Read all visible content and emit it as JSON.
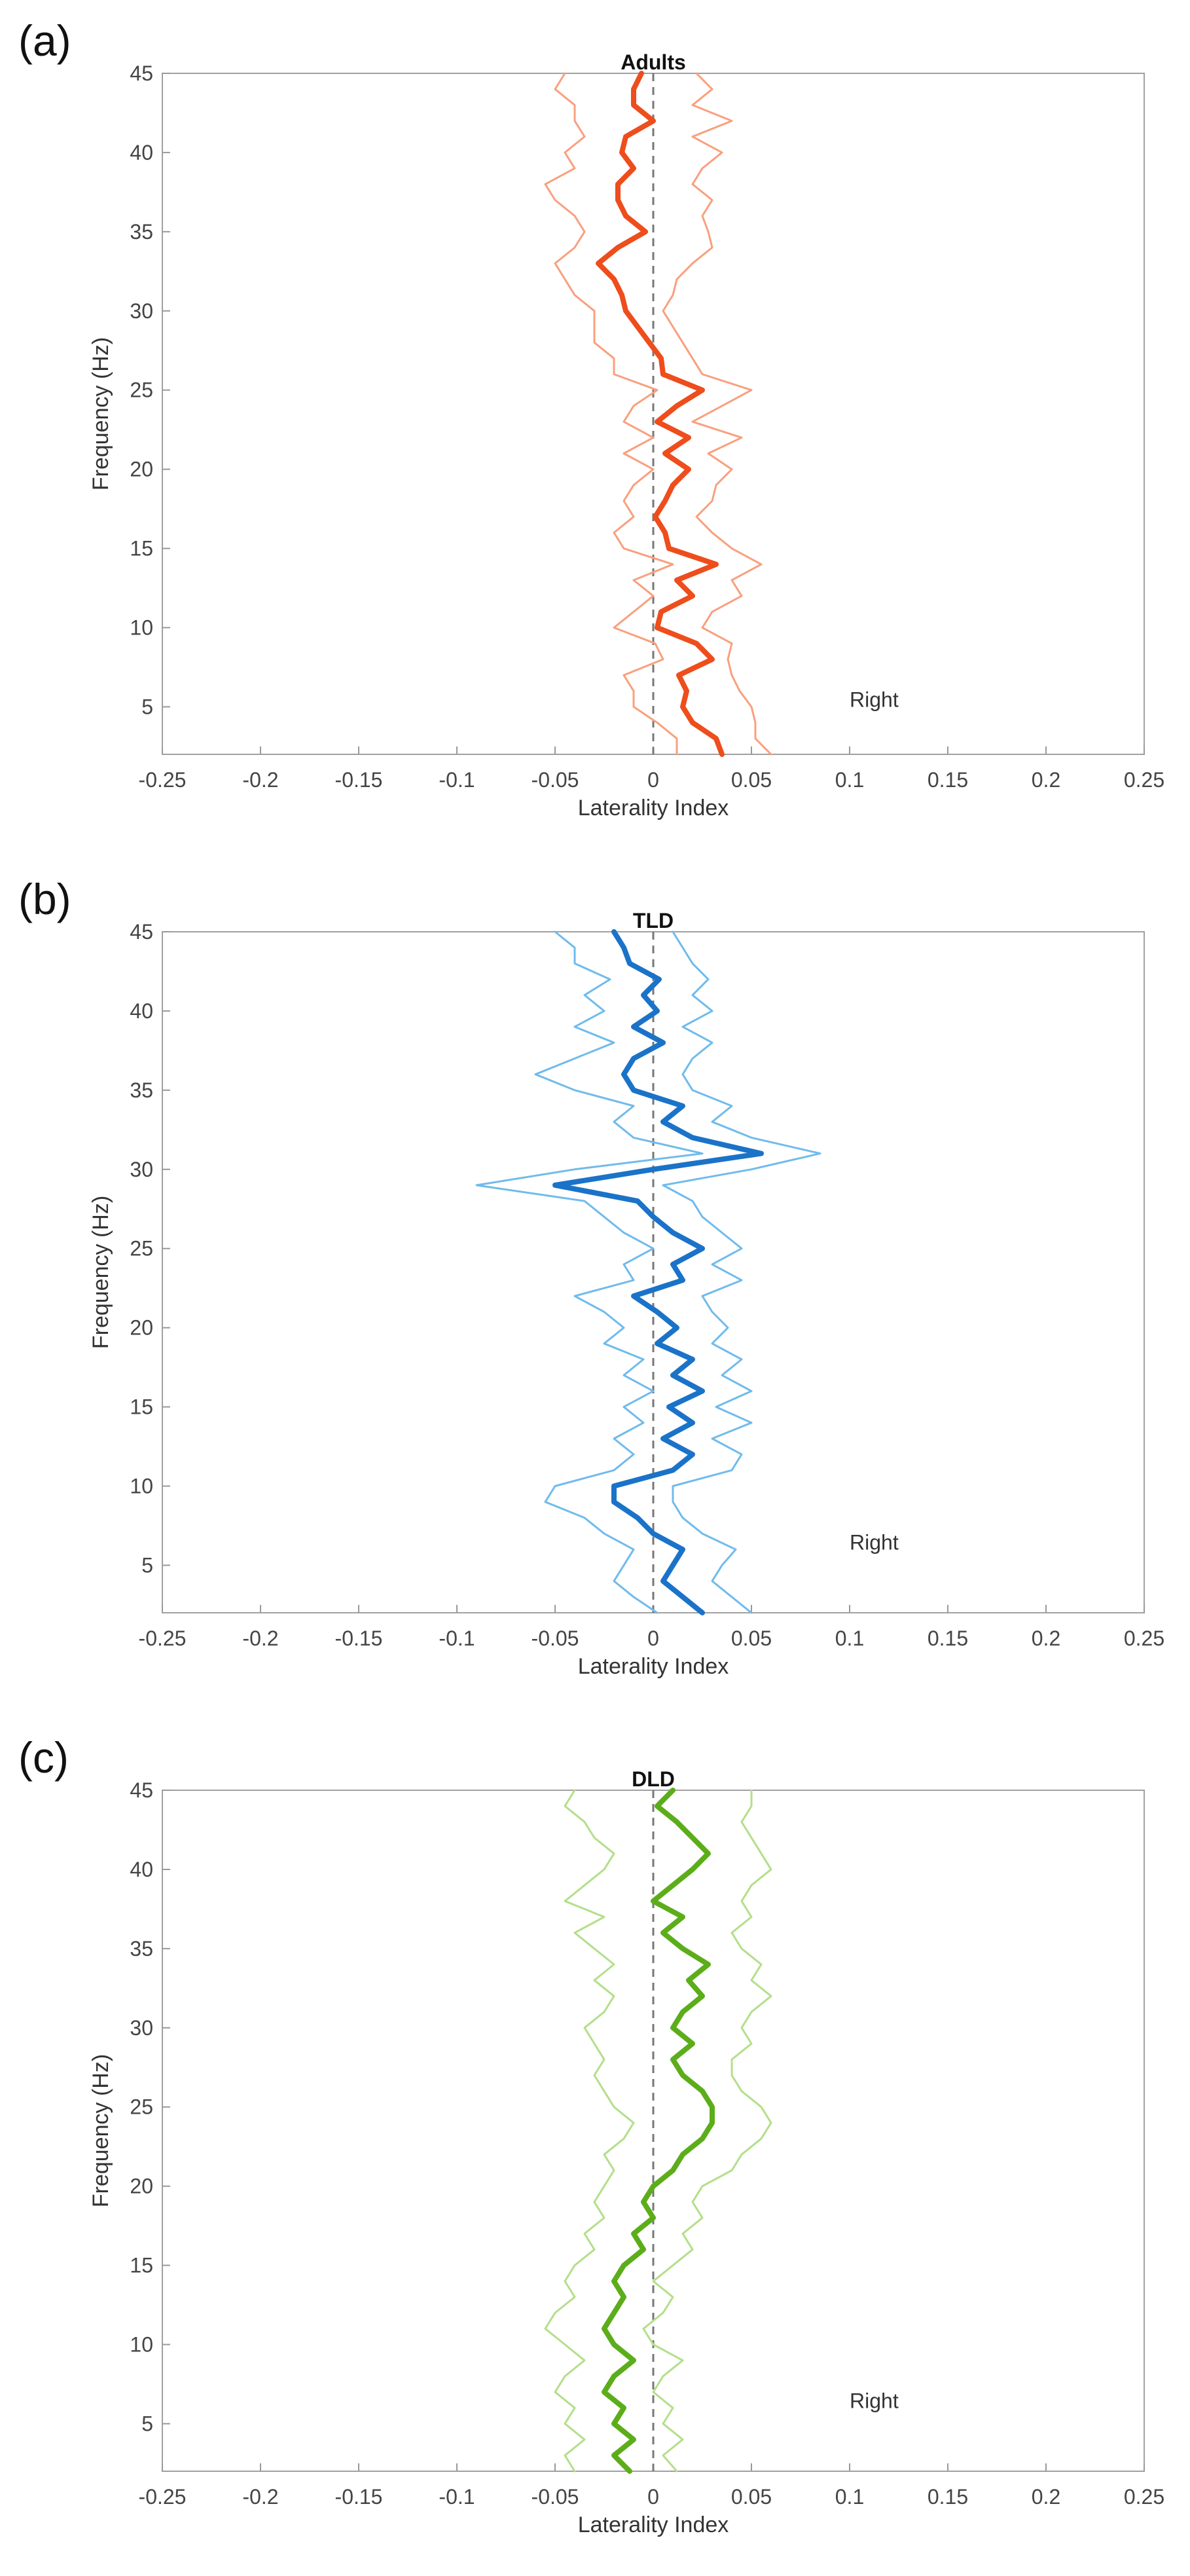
{
  "figure": {
    "panels": [
      {
        "letter": "(a)"
      },
      {
        "letter": "(b)"
      },
      {
        "letter": "(c)"
      }
    ]
  },
  "chart_data": [
    {
      "type": "line",
      "title": "Adults",
      "xlabel": "Laterality Index",
      "ylabel": "Frequency (Hz)",
      "xlim": [
        -0.25,
        0.25
      ],
      "ylim": [
        2,
        45
      ],
      "x_ticks": [
        "-0.25",
        "-0.2",
        "-0.15",
        "-0.1",
        "-0.05",
        "0",
        "0.05",
        "0.1",
        "0.15",
        "0.2",
        "0.25"
      ],
      "y_ticks": [
        "5",
        "10",
        "15",
        "20",
        "25",
        "30",
        "35",
        "40",
        "45"
      ],
      "annotation": "Right",
      "annotation_pos": {
        "x": 0.1,
        "y": 5
      },
      "colors": {
        "mean": "#ee4d1c",
        "bounds": "#f9a07e"
      },
      "frequency": [
        2,
        3,
        4,
        5,
        6,
        7,
        8,
        9,
        10,
        11,
        12,
        13,
        14,
        15,
        16,
        17,
        18,
        19,
        20,
        21,
        22,
        23,
        24,
        25,
        26,
        27,
        28,
        29,
        30,
        31,
        32,
        33,
        34,
        35,
        36,
        37,
        38,
        39,
        40,
        41,
        42,
        43,
        44,
        45
      ],
      "series": [
        {
          "name": "mean",
          "values": [
            0.035,
            0.032,
            0.02,
            0.015,
            0.017,
            0.013,
            0.03,
            0.022,
            0.002,
            0.004,
            0.02,
            0.012,
            0.032,
            0.008,
            0.006,
            0.001,
            0.006,
            0.01,
            0.018,
            0.006,
            0.018,
            0.002,
            0.012,
            0.025,
            0.005,
            0.004,
            -0.002,
            -0.008,
            -0.014,
            -0.016,
            -0.02,
            -0.028,
            -0.018,
            -0.004,
            -0.014,
            -0.018,
            -0.018,
            -0.01,
            -0.016,
            -0.014,
            0.0,
            -0.01,
            -0.01,
            -0.006
          ]
        },
        {
          "name": "upper",
          "values": [
            0.06,
            0.052,
            0.052,
            0.05,
            0.044,
            0.04,
            0.038,
            0.04,
            0.025,
            0.03,
            0.045,
            0.04,
            0.055,
            0.04,
            0.03,
            0.022,
            0.03,
            0.032,
            0.04,
            0.028,
            0.045,
            0.02,
            0.035,
            0.05,
            0.025,
            0.02,
            0.015,
            0.01,
            0.005,
            0.01,
            0.012,
            0.02,
            0.03,
            0.028,
            0.025,
            0.03,
            0.02,
            0.025,
            0.035,
            0.02,
            0.04,
            0.02,
            0.03,
            0.022
          ]
        },
        {
          "name": "lower",
          "values": [
            0.012,
            0.012,
            0.002,
            -0.01,
            -0.01,
            -0.015,
            0.005,
            0.001,
            -0.02,
            -0.01,
            0.0,
            -0.01,
            0.01,
            -0.015,
            -0.02,
            -0.01,
            -0.015,
            -0.01,
            0.0,
            -0.015,
            0.0,
            -0.015,
            -0.01,
            0.002,
            -0.02,
            -0.02,
            -0.03,
            -0.03,
            -0.03,
            -0.04,
            -0.045,
            -0.05,
            -0.04,
            -0.035,
            -0.04,
            -0.05,
            -0.055,
            -0.04,
            -0.045,
            -0.035,
            -0.04,
            -0.04,
            -0.05,
            -0.045
          ]
        }
      ]
    },
    {
      "type": "line",
      "title": "TLD",
      "xlabel": "Laterality Index",
      "ylabel": "Frequency (Hz)",
      "xlim": [
        -0.25,
        0.25
      ],
      "ylim": [
        2,
        45
      ],
      "x_ticks": [
        "-0.25",
        "-0.2",
        "-0.15",
        "-0.1",
        "-0.05",
        "0",
        "0.05",
        "0.1",
        "0.15",
        "0.2",
        "0.25"
      ],
      "y_ticks": [
        "5",
        "10",
        "15",
        "20",
        "25",
        "30",
        "35",
        "40",
        "45"
      ],
      "annotation": "Right",
      "annotation_pos": {
        "x": 0.1,
        "y": 6
      },
      "colors": {
        "mean": "#1a73c8",
        "bounds": "#70bbec"
      },
      "frequency": [
        2,
        3,
        4,
        5,
        6,
        7,
        8,
        9,
        10,
        11,
        12,
        13,
        14,
        15,
        16,
        17,
        18,
        19,
        20,
        21,
        22,
        23,
        24,
        25,
        26,
        27,
        28,
        29,
        30,
        31,
        32,
        33,
        34,
        35,
        36,
        37,
        38,
        39,
        40,
        41,
        42,
        43,
        44,
        45
      ],
      "series": [
        {
          "name": "mean",
          "values": [
            0.025,
            0.015,
            0.005,
            0.01,
            0.015,
            0.0,
            -0.008,
            -0.02,
            -0.02,
            0.01,
            0.02,
            0.005,
            0.02,
            0.008,
            0.025,
            0.01,
            0.02,
            0.002,
            0.012,
            0.002,
            -0.01,
            0.015,
            0.01,
            0.025,
            0.01,
            0.0,
            -0.008,
            -0.05,
            0.0,
            0.055,
            0.02,
            0.005,
            0.015,
            -0.01,
            -0.015,
            -0.01,
            0.005,
            -0.01,
            0.002,
            -0.005,
            0.003,
            -0.012,
            -0.015,
            -0.02
          ]
        },
        {
          "name": "upper",
          "values": [
            0.05,
            0.04,
            0.03,
            0.035,
            0.042,
            0.025,
            0.015,
            0.01,
            0.01,
            0.04,
            0.045,
            0.03,
            0.05,
            0.032,
            0.05,
            0.035,
            0.045,
            0.03,
            0.038,
            0.03,
            0.025,
            0.045,
            0.03,
            0.045,
            0.035,
            0.025,
            0.02,
            0.005,
            0.05,
            0.085,
            0.05,
            0.03,
            0.04,
            0.02,
            0.015,
            0.02,
            0.03,
            0.015,
            0.03,
            0.02,
            0.028,
            0.02,
            0.015,
            0.01
          ]
        },
        {
          "name": "lower",
          "values": [
            0.002,
            -0.01,
            -0.02,
            -0.015,
            -0.01,
            -0.025,
            -0.035,
            -0.055,
            -0.05,
            -0.02,
            -0.01,
            -0.02,
            -0.005,
            -0.015,
            0.0,
            -0.015,
            -0.005,
            -0.025,
            -0.015,
            -0.025,
            -0.04,
            -0.01,
            -0.015,
            0.0,
            -0.015,
            -0.025,
            -0.035,
            -0.09,
            -0.04,
            0.025,
            -0.01,
            -0.02,
            -0.01,
            -0.04,
            -0.06,
            -0.04,
            -0.02,
            -0.04,
            -0.025,
            -0.035,
            -0.022,
            -0.04,
            -0.04,
            -0.05
          ]
        }
      ]
    },
    {
      "type": "line",
      "title": "DLD",
      "xlabel": "Laterality Index",
      "ylabel": "Frequency (Hz)",
      "xlim": [
        -0.25,
        0.25
      ],
      "ylim": [
        2,
        45
      ],
      "x_ticks": [
        "-0.25",
        "-0.2",
        "-0.15",
        "-0.1",
        "-0.05",
        "0",
        "0.05",
        "0.1",
        "0.15",
        "0.2",
        "0.25"
      ],
      "y_ticks": [
        "5",
        "10",
        "15",
        "20",
        "25",
        "30",
        "35",
        "40",
        "45"
      ],
      "annotation": "Right",
      "annotation_pos": {
        "x": 0.1,
        "y": 6
      },
      "colors": {
        "mean": "#5cad1a",
        "bounds": "#b3df8a"
      },
      "frequency": [
        2,
        3,
        4,
        5,
        6,
        7,
        8,
        9,
        10,
        11,
        12,
        13,
        14,
        15,
        16,
        17,
        18,
        19,
        20,
        21,
        22,
        23,
        24,
        25,
        26,
        27,
        28,
        29,
        30,
        31,
        32,
        33,
        34,
        35,
        36,
        37,
        38,
        39,
        40,
        41,
        42,
        43,
        44,
        45
      ],
      "series": [
        {
          "name": "mean",
          "values": [
            -0.012,
            -0.02,
            -0.01,
            -0.02,
            -0.015,
            -0.025,
            -0.02,
            -0.01,
            -0.02,
            -0.025,
            -0.02,
            -0.015,
            -0.02,
            -0.015,
            -0.005,
            -0.01,
            0.0,
            -0.005,
            0.0,
            0.01,
            0.015,
            0.025,
            0.03,
            0.03,
            0.025,
            0.015,
            0.01,
            0.02,
            0.01,
            0.015,
            0.025,
            0.018,
            0.028,
            0.015,
            0.005,
            0.015,
            0.0,
            0.01,
            0.02,
            0.028,
            0.02,
            0.012,
            0.002,
            0.01
          ]
        },
        {
          "name": "upper",
          "values": [
            0.012,
            0.005,
            0.015,
            0.005,
            0.01,
            0.0,
            0.005,
            0.015,
            0.0,
            -0.005,
            0.005,
            0.01,
            0.0,
            0.01,
            0.02,
            0.015,
            0.025,
            0.02,
            0.025,
            0.04,
            0.045,
            0.055,
            0.06,
            0.055,
            0.045,
            0.04,
            0.04,
            0.05,
            0.045,
            0.05,
            0.06,
            0.05,
            0.055,
            0.045,
            0.04,
            0.05,
            0.045,
            0.05,
            0.06,
            0.055,
            0.05,
            0.045,
            0.05,
            0.05
          ]
        },
        {
          "name": "lower",
          "values": [
            -0.04,
            -0.045,
            -0.035,
            -0.045,
            -0.04,
            -0.05,
            -0.045,
            -0.035,
            -0.045,
            -0.055,
            -0.05,
            -0.04,
            -0.045,
            -0.04,
            -0.03,
            -0.035,
            -0.025,
            -0.03,
            -0.025,
            -0.02,
            -0.025,
            -0.015,
            -0.01,
            -0.02,
            -0.025,
            -0.03,
            -0.025,
            -0.03,
            -0.035,
            -0.025,
            -0.02,
            -0.03,
            -0.02,
            -0.03,
            -0.04,
            -0.025,
            -0.045,
            -0.035,
            -0.025,
            -0.02,
            -0.03,
            -0.035,
            -0.045,
            -0.04
          ]
        }
      ]
    }
  ]
}
